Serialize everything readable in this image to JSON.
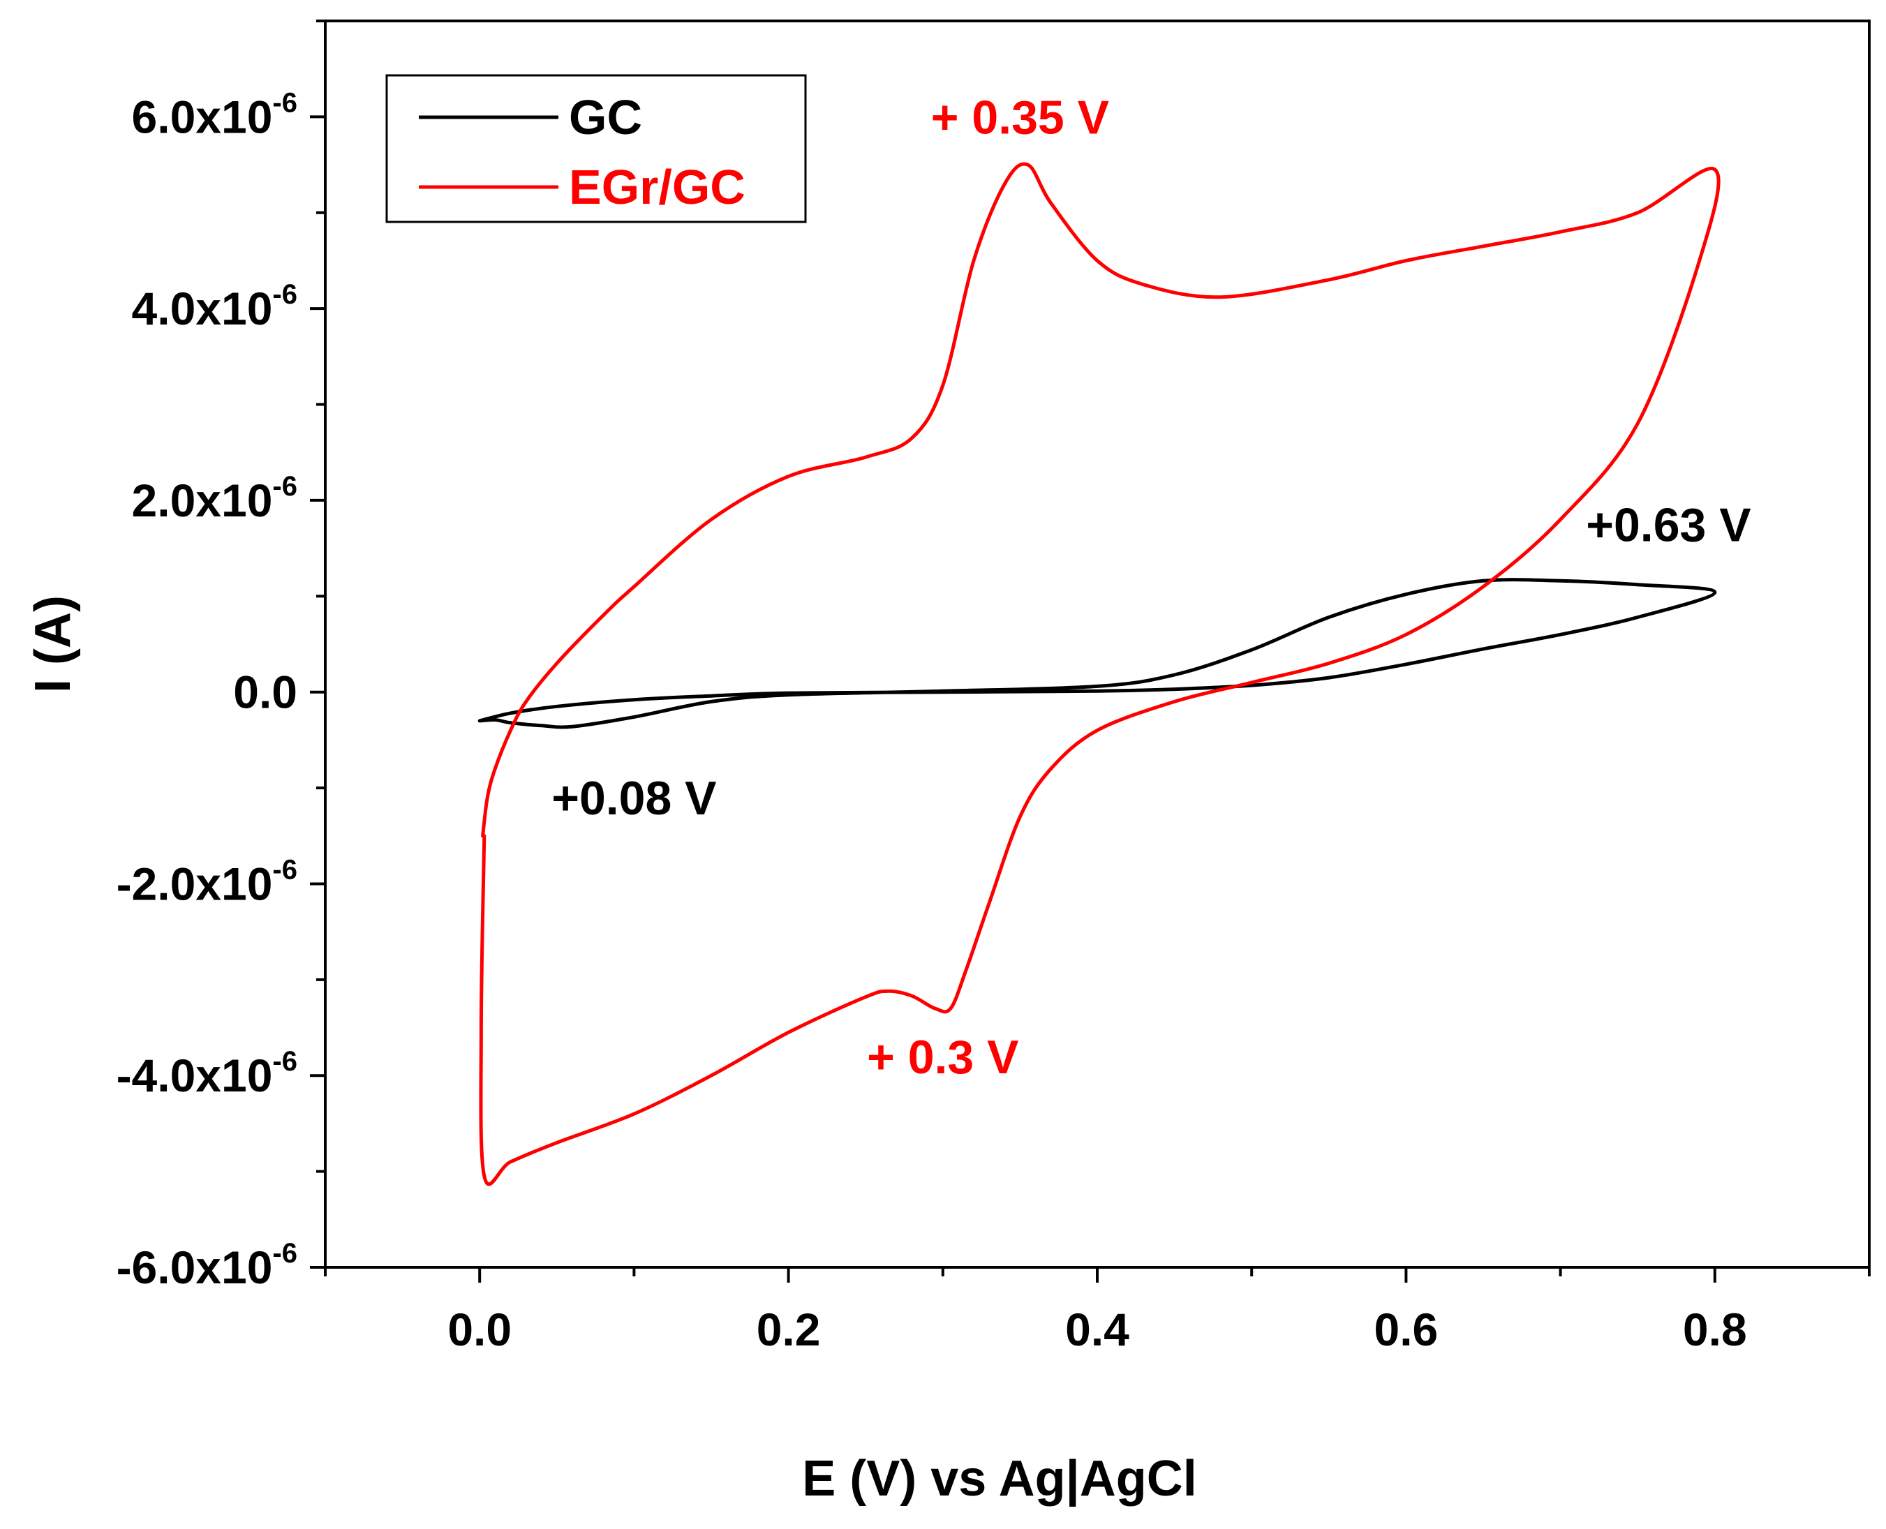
{
  "chart_data": {
    "type": "line",
    "title": "",
    "xlabel": "E (V) vs Ag|AgCl",
    "ylabel": "I (A)",
    "xlim": [
      -0.1,
      0.9
    ],
    "ylim": [
      -6e-06,
      7e-06
    ],
    "x_ticks": [
      {
        "value": 0.0,
        "label": "0.0"
      },
      {
        "value": 0.2,
        "label": "0.2"
      },
      {
        "value": 0.4,
        "label": "0.4"
      },
      {
        "value": 0.6,
        "label": "0.6"
      },
      {
        "value": 0.8,
        "label": "0.8"
      }
    ],
    "y_ticks": [
      {
        "value": 6e-06,
        "mantissa": "6.0x10",
        "exponent": "-6"
      },
      {
        "value": 4e-06,
        "mantissa": "4.0x10",
        "exponent": "-6"
      },
      {
        "value": 2e-06,
        "mantissa": "2.0x10",
        "exponent": "-6"
      },
      {
        "value": 0.0,
        "mantissa": "0.0",
        "exponent": ""
      },
      {
        "value": -2e-06,
        "mantissa": "-2.0x10",
        "exponent": "-6"
      },
      {
        "value": -4e-06,
        "mantissa": "-4.0x10",
        "exponent": "-6"
      },
      {
        "value": -6e-06,
        "mantissa": "-6.0x10",
        "exponent": "-6"
      }
    ],
    "legend": {
      "placement": "top-left",
      "entries": [
        "GC",
        "EGr/GC"
      ]
    },
    "grid": false,
    "series": [
      {
        "name": "GC",
        "color": "#000000",
        "x": [
          0.0,
          0.02,
          0.05,
          0.1,
          0.15,
          0.2,
          0.3,
          0.4,
          0.45,
          0.5,
          0.55,
          0.6,
          0.65,
          0.7,
          0.75,
          0.8,
          0.75,
          0.7,
          0.65,
          0.6,
          0.55,
          0.5,
          0.45,
          0.4,
          0.3,
          0.2,
          0.15,
          0.1,
          0.06,
          0.04,
          0.02,
          0.01,
          0.0
        ],
        "y": [
          -3e-07,
          -2.2e-07,
          -1.5e-07,
          -8e-08,
          -4e-08,
          -1e-08,
          0.0,
          1e-08,
          3e-08,
          7e-08,
          1.5e-07,
          2.9e-07,
          4.5e-07,
          6e-07,
          7.8e-07,
          1.04e-06,
          1.12e-06,
          1.16e-06,
          1.16e-06,
          1.02e-06,
          7.8e-07,
          4.4e-07,
          1.8e-07,
          6e-08,
          1e-08,
          -3e-08,
          -1e-07,
          -2.6e-07,
          -3.6e-07,
          -3.5e-07,
          -3.2e-07,
          -2.9e-07,
          -3e-07
        ]
      },
      {
        "name": "EGr/GC",
        "color": "#ff0000",
        "x": [
          0.002,
          0.005,
          0.01,
          0.02,
          0.03,
          0.05,
          0.08,
          0.1,
          0.15,
          0.2,
          0.25,
          0.28,
          0.3,
          0.32,
          0.34,
          0.355,
          0.37,
          0.4,
          0.43,
          0.48,
          0.55,
          0.6,
          0.65,
          0.7,
          0.75,
          0.8,
          0.79,
          0.75,
          0.7,
          0.65,
          0.6,
          0.55,
          0.5,
          0.45,
          0.4,
          0.37,
          0.35,
          0.33,
          0.315,
          0.305,
          0.295,
          0.28,
          0.265,
          0.25,
          0.2,
          0.15,
          0.1,
          0.05,
          0.02,
          0.003,
          0.001,
          0.003
        ],
        "y": [
          -1.5e-06,
          -1.1e-06,
          -8e-07,
          -4e-07,
          -1e-07,
          3e-07,
          8e-07,
          1.1e-06,
          1.8e-06,
          2.25e-06,
          2.45e-06,
          2.65e-06,
          3.2e-06,
          4.5e-06,
          5.3e-06,
          5.5e-06,
          5.1e-06,
          4.5e-06,
          4.25e-06,
          4.12e-06,
          4.3e-06,
          4.5e-06,
          4.65e-06,
          4.8e-06,
          5e-06,
          5.45e-06,
          4.5e-06,
          2.8e-06,
          1.8e-06,
          1.1e-06,
          6e-07,
          3e-07,
          1e-07,
          -1e-07,
          -4e-07,
          -8e-07,
          -1.3e-06,
          -2.2e-06,
          -2.9e-06,
          -3.3e-06,
          -3.3e-06,
          -3.17e-06,
          -3.12e-06,
          -3.18e-06,
          -3.55e-06,
          -4e-06,
          -4.4e-06,
          -4.7e-06,
          -4.9e-06,
          -5.05e-06,
          -3.5e-06,
          -1.5e-06
        ]
      }
    ],
    "annotations": [
      {
        "text": "+ 0.35 V",
        "x": 0.35,
        "y": 6e-06,
        "color": "#ff0000"
      },
      {
        "text": "+0.63 V",
        "x": 0.77,
        "y": 1.75e-06,
        "color": "#000000"
      },
      {
        "text": "+0.08 V",
        "x": 0.1,
        "y": -1.1e-06,
        "color": "#000000"
      },
      {
        "text": "+ 0.3 V",
        "x": 0.3,
        "y": -3.8e-06,
        "color": "#ff0000"
      }
    ]
  }
}
